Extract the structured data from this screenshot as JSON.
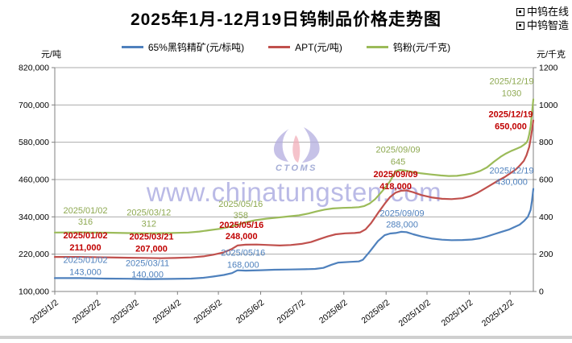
{
  "header": {
    "title": "2025年1月-12月19日钨制品价格走势图",
    "brand_links": [
      {
        "label": "中钨在线"
      },
      {
        "label": "中钨智造"
      }
    ]
  },
  "watermark": {
    "url": "www.chinatungsten.com",
    "logo_text": "CTOMS"
  },
  "chart_data": {
    "type": "line",
    "title": "2025年1月-12月19日钨制品价格走势图",
    "grid": true,
    "legend_position": "top-center",
    "left_axis": {
      "title": "元/吨",
      "min": 100000,
      "max": 820000,
      "tick_step": 120000,
      "tick_labels": [
        "100,000",
        "220,000",
        "340,000",
        "460,000",
        "580,000",
        "700,000",
        "820,000"
      ]
    },
    "right_axis": {
      "title": "元/千克",
      "min": 0,
      "max": 1200,
      "tick_step": 200,
      "tick_labels": [
        "0",
        "200",
        "400",
        "600",
        "800",
        "1000",
        "1200"
      ]
    },
    "x_axis": {
      "domain": [
        "2025/1/2",
        "2025/12/19"
      ],
      "tick_labels": [
        "2025/1/2",
        "2025/2/2",
        "2025/3/2",
        "2025/4/2",
        "2025/5/2",
        "2025/6/2",
        "2025/7/2",
        "2025/8/2",
        "2025/9/2",
        "2025/10/2",
        "2025/11/2",
        "2025/12/2"
      ]
    },
    "series": [
      {
        "name": "65%黑钨精矿(元/标吨)",
        "axis": "left",
        "color": "#4F81BD",
        "label_color": "#4F81BD",
        "label_bold": false,
        "points": [
          [
            "2025/1/2",
            143000
          ],
          [
            "2025/1/20",
            143000
          ],
          [
            "2025/2/8",
            141500
          ],
          [
            "2025/2/25",
            140800
          ],
          [
            "2025/3/11",
            140000
          ],
          [
            "2025/3/28",
            140300
          ],
          [
            "2025/4/12",
            141500
          ],
          [
            "2025/4/21",
            144000
          ],
          [
            "2025/4/28",
            148000
          ],
          [
            "2025/5/6",
            153000
          ],
          [
            "2025/5/12",
            159000
          ],
          [
            "2025/5/16",
            168000
          ],
          [
            "2025/5/22",
            167000
          ],
          [
            "2025/6/2",
            168500
          ],
          [
            "2025/6/12",
            170000
          ],
          [
            "2025/6/24",
            170800
          ],
          [
            "2025/7/4",
            171500
          ],
          [
            "2025/7/12",
            172500
          ],
          [
            "2025/7/18",
            176000
          ],
          [
            "2025/7/24",
            186000
          ],
          [
            "2025/7/29",
            193000
          ],
          [
            "2025/8/6",
            195000
          ],
          [
            "2025/8/13",
            196500
          ],
          [
            "2025/8/16",
            202000
          ],
          [
            "2025/8/21",
            228000
          ],
          [
            "2025/8/27",
            262000
          ],
          [
            "2025/9/1",
            281000
          ],
          [
            "2025/9/5",
            286500
          ],
          [
            "2025/9/9",
            288000
          ],
          [
            "2025/9/13",
            292000
          ],
          [
            "2025/9/17",
            291000
          ],
          [
            "2025/9/22",
            284000
          ],
          [
            "2025/9/28",
            277000
          ],
          [
            "2025/10/6",
            270000
          ],
          [
            "2025/10/13",
            266500
          ],
          [
            "2025/10/20",
            265000
          ],
          [
            "2025/10/28",
            265500
          ],
          [
            "2025/11/4",
            267000
          ],
          [
            "2025/11/10",
            271000
          ],
          [
            "2025/11/15",
            277000
          ],
          [
            "2025/11/20",
            284000
          ],
          [
            "2025/11/25",
            291000
          ],
          [
            "2025/12/1",
            299000
          ],
          [
            "2025/12/5",
            307000
          ],
          [
            "2025/12/9",
            315000
          ],
          [
            "2025/12/12",
            326000
          ],
          [
            "2025/12/15",
            340000
          ],
          [
            "2025/12/17",
            362000
          ],
          [
            "2025/12/18",
            392000
          ],
          [
            "2025/12/19",
            430000
          ]
        ]
      },
      {
        "name": "APT(元/吨)",
        "axis": "left",
        "color": "#C0504D",
        "label_color": "#C00000",
        "label_bold": true,
        "points": [
          [
            "2025/1/2",
            211000
          ],
          [
            "2025/1/20",
            211000
          ],
          [
            "2025/2/8",
            209800
          ],
          [
            "2025/2/25",
            208500
          ],
          [
            "2025/3/8",
            208000
          ],
          [
            "2025/3/21",
            207000
          ],
          [
            "2025/3/31",
            207800
          ],
          [
            "2025/4/12",
            209500
          ],
          [
            "2025/4/21",
            213000
          ],
          [
            "2025/4/28",
            218000
          ],
          [
            "2025/5/6",
            226000
          ],
          [
            "2025/5/12",
            237000
          ],
          [
            "2025/5/16",
            248000
          ],
          [
            "2025/5/22",
            250500
          ],
          [
            "2025/5/30",
            251000
          ],
          [
            "2025/6/8",
            249500
          ],
          [
            "2025/6/16",
            248000
          ],
          [
            "2025/6/24",
            249500
          ],
          [
            "2025/7/2",
            253000
          ],
          [
            "2025/7/9",
            259000
          ],
          [
            "2025/7/15",
            268000
          ],
          [
            "2025/7/21",
            277000
          ],
          [
            "2025/7/27",
            284000
          ],
          [
            "2025/8/3",
            287000
          ],
          [
            "2025/8/10",
            288000
          ],
          [
            "2025/8/14",
            290000
          ],
          [
            "2025/8/18",
            300000
          ],
          [
            "2025/8/22",
            320000
          ],
          [
            "2025/8/27",
            352000
          ],
          [
            "2025/9/1",
            382000
          ],
          [
            "2025/9/5",
            404000
          ],
          [
            "2025/9/9",
            418000
          ],
          [
            "2025/9/13",
            424000
          ],
          [
            "2025/9/17",
            425000
          ],
          [
            "2025/9/22",
            419000
          ],
          [
            "2025/9/28",
            410000
          ],
          [
            "2025/10/6",
            402000
          ],
          [
            "2025/10/13",
            398000
          ],
          [
            "2025/10/20",
            397000
          ],
          [
            "2025/10/28",
            400000
          ],
          [
            "2025/11/3",
            407000
          ],
          [
            "2025/11/8",
            417000
          ],
          [
            "2025/11/13",
            430000
          ],
          [
            "2025/11/18",
            443000
          ],
          [
            "2025/11/23",
            456000
          ],
          [
            "2025/11/28",
            468000
          ],
          [
            "2025/12/2",
            480000
          ],
          [
            "2025/12/6",
            492000
          ],
          [
            "2025/12/9",
            505000
          ],
          [
            "2025/12/12",
            520000
          ],
          [
            "2025/12/14",
            538000
          ],
          [
            "2025/12/16",
            565000
          ],
          [
            "2025/12/17",
            590000
          ],
          [
            "2025/12/18",
            618000
          ],
          [
            "2025/12/19",
            650000
          ]
        ]
      },
      {
        "name": "钨粉(元/千克)",
        "axis": "right",
        "color": "#9BBB59",
        "label_color": "#8DA850",
        "label_bold": false,
        "points": [
          [
            "2025/1/2",
            316
          ],
          [
            "2025/1/20",
            317
          ],
          [
            "2025/2/10",
            315
          ],
          [
            "2025/2/25",
            313
          ],
          [
            "2025/3/12",
            312
          ],
          [
            "2025/3/26",
            313
          ],
          [
            "2025/4/10",
            316
          ],
          [
            "2025/4/18",
            321
          ],
          [
            "2025/4/25",
            328
          ],
          [
            "2025/5/3",
            336
          ],
          [
            "2025/5/10",
            346
          ],
          [
            "2025/5/16",
            358
          ],
          [
            "2025/5/22",
            371
          ],
          [
            "2025/5/29",
            382
          ],
          [
            "2025/6/6",
            390
          ],
          [
            "2025/6/14",
            396
          ],
          [
            "2025/6/22",
            402
          ],
          [
            "2025/6/30",
            408
          ],
          [
            "2025/7/7",
            418
          ],
          [
            "2025/7/13",
            429
          ],
          [
            "2025/7/19",
            439
          ],
          [
            "2025/7/25",
            445
          ],
          [
            "2025/8/1",
            448
          ],
          [
            "2025/8/8",
            450
          ],
          [
            "2025/8/13",
            452
          ],
          [
            "2025/8/17",
            458
          ],
          [
            "2025/8/21",
            472
          ],
          [
            "2025/8/25",
            495
          ],
          [
            "2025/8/29",
            528
          ],
          [
            "2025/9/2",
            562
          ],
          [
            "2025/9/5",
            592
          ],
          [
            "2025/9/9",
            645
          ],
          [
            "2025/9/12",
            651
          ],
          [
            "2025/9/16",
            648
          ],
          [
            "2025/9/21",
            641
          ],
          [
            "2025/9/27",
            634
          ],
          [
            "2025/10/5",
            627
          ],
          [
            "2025/10/12",
            622
          ],
          [
            "2025/10/18",
            619
          ],
          [
            "2025/10/24",
            620
          ],
          [
            "2025/10/30",
            626
          ],
          [
            "2025/11/5",
            634
          ],
          [
            "2025/11/10",
            646
          ],
          [
            "2025/11/15",
            665
          ],
          [
            "2025/11/20",
            695
          ],
          [
            "2025/11/25",
            722
          ],
          [
            "2025/11/29",
            740
          ],
          [
            "2025/12/3",
            754
          ],
          [
            "2025/12/7",
            766
          ],
          [
            "2025/12/10",
            776
          ],
          [
            "2025/12/12",
            786
          ],
          [
            "2025/12/14",
            798
          ],
          [
            "2025/12/15",
            812
          ],
          [
            "2025/12/16",
            842
          ],
          [
            "2025/12/17",
            885
          ],
          [
            "2025/12/18",
            955
          ],
          [
            "2025/12/19",
            1030
          ]
        ]
      }
    ],
    "annotations": [
      {
        "series": 2,
        "date": "2025/01/02",
        "value": 316,
        "label": "316",
        "dx": 38,
        "dy": [
          -24,
          -10
        ]
      },
      {
        "series": 1,
        "date": "2025/01/02",
        "value": 211000,
        "label": "211,000",
        "dx": 38,
        "dy": [
          -23,
          -8
        ]
      },
      {
        "series": 0,
        "date": "2025/01/02",
        "value": 143000,
        "label": "143,000",
        "dx": 38,
        "dy": [
          -19,
          -4
        ]
      },
      {
        "series": 2,
        "date": "2025/03/12",
        "value": 312,
        "label": "312",
        "dx": 0,
        "dy": [
          -22,
          -8
        ]
      },
      {
        "series": 1,
        "date": "2025/03/21",
        "value": 207000,
        "label": "207,000",
        "dx": -12,
        "dy": [
          -23,
          -8
        ]
      },
      {
        "series": 0,
        "date": "2025/03/11",
        "value": 140000,
        "label": "140,000",
        "dx": 0,
        "dy": [
          -16,
          -2
        ]
      },
      {
        "series": 2,
        "date": "2025/05/16",
        "value": 358,
        "label": "358",
        "dx": 4,
        "dy": [
          -22,
          -8
        ]
      },
      {
        "series": 1,
        "date": "2025/05/16",
        "value": 248000,
        "label": "248,000",
        "dx": 5,
        "dy": [
          -22,
          -8
        ]
      },
      {
        "series": 0,
        "date": "2025/05/16",
        "value": 168000,
        "label": "168,000",
        "dx": 7,
        "dy": [
          -18,
          -3
        ]
      },
      {
        "series": 2,
        "date": "2025/09/09",
        "value": 645,
        "label": "645",
        "dx": 3,
        "dy": [
          -23,
          -8
        ]
      },
      {
        "series": 1,
        "date": "2025/09/09",
        "value": 418000,
        "label": "418,000",
        "dx": 0,
        "dy": [
          -19,
          -4
        ]
      },
      {
        "series": 0,
        "date": "2025/09/09",
        "value": 288000,
        "label": "288,000",
        "dx": 8,
        "dy": [
          -21,
          -7
        ]
      },
      {
        "series": 2,
        "date": "2025/12/19",
        "value": 1030,
        "label": "1030",
        "dx": -27,
        "dy": [
          -19,
          -4
        ]
      },
      {
        "series": 1,
        "date": "2025/12/19",
        "value": 650000,
        "label": "650,000",
        "dx": -28,
        "dy": [
          -4,
          11
        ]
      },
      {
        "series": 0,
        "date": "2025/12/19",
        "value": 430000,
        "label": "430,000",
        "dx": -27,
        "dy": [
          -19,
          -5
        ]
      }
    ]
  }
}
